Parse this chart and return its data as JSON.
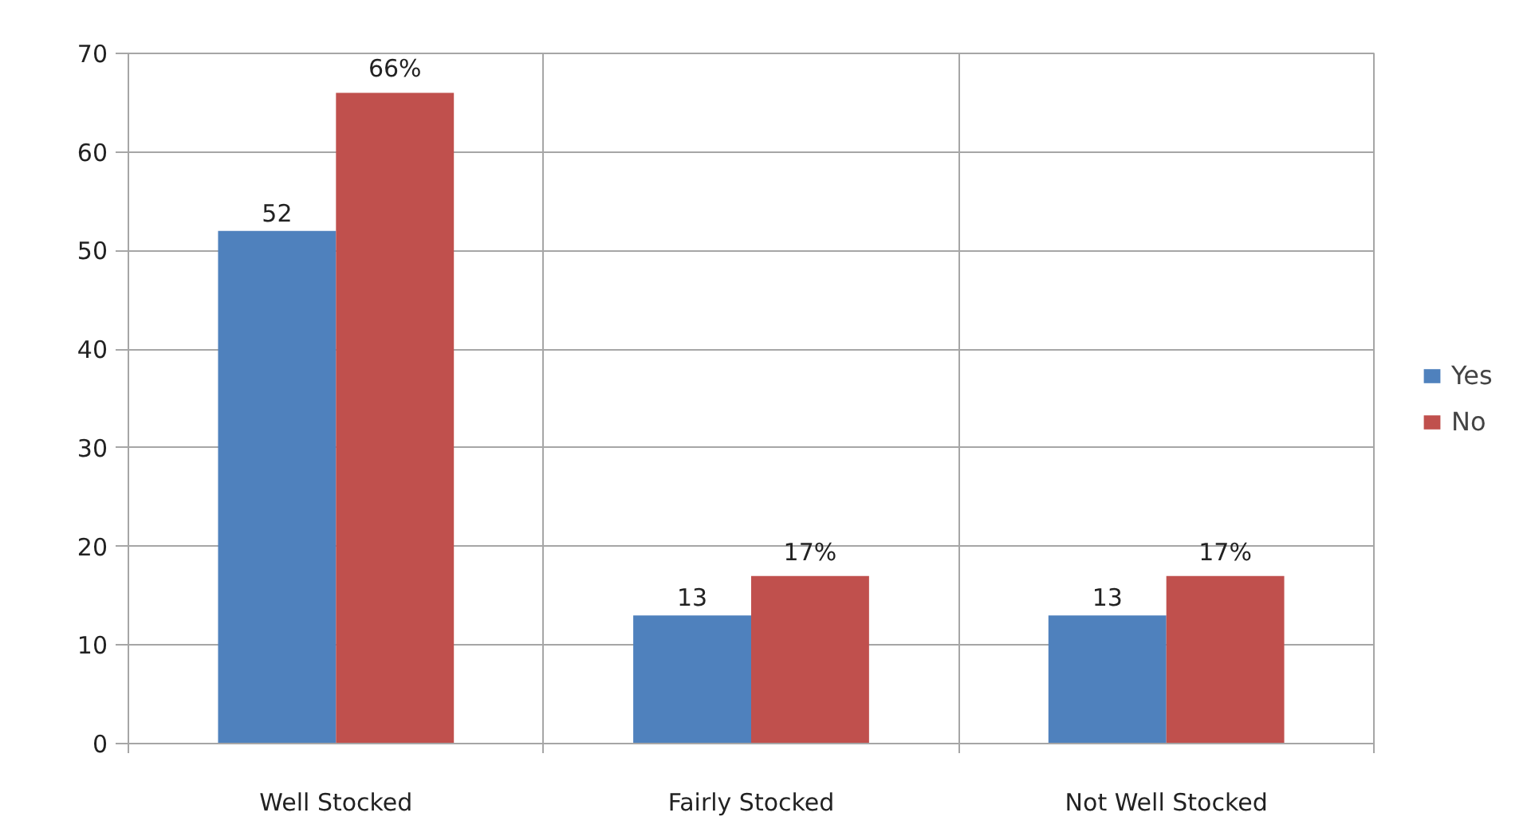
{
  "chart_data": {
    "type": "bar",
    "categories": [
      "Well Stocked",
      "Fairly Stocked",
      "Not Well Stocked"
    ],
    "series": [
      {
        "name": "Yes",
        "color": "#4f81bd",
        "values": [
          52,
          13,
          13
        ],
        "value_labels": [
          "52",
          "13",
          "13"
        ]
      },
      {
        "name": "No",
        "color": "#c0504d",
        "values": [
          66,
          17,
          17
        ],
        "value_labels": [
          "66%",
          "17%",
          "17%"
        ]
      }
    ],
    "ylim": [
      0,
      70
    ],
    "yticks": [
      0,
      10,
      20,
      30,
      40,
      50,
      60,
      70
    ],
    "grid": true,
    "legend": "right"
  }
}
